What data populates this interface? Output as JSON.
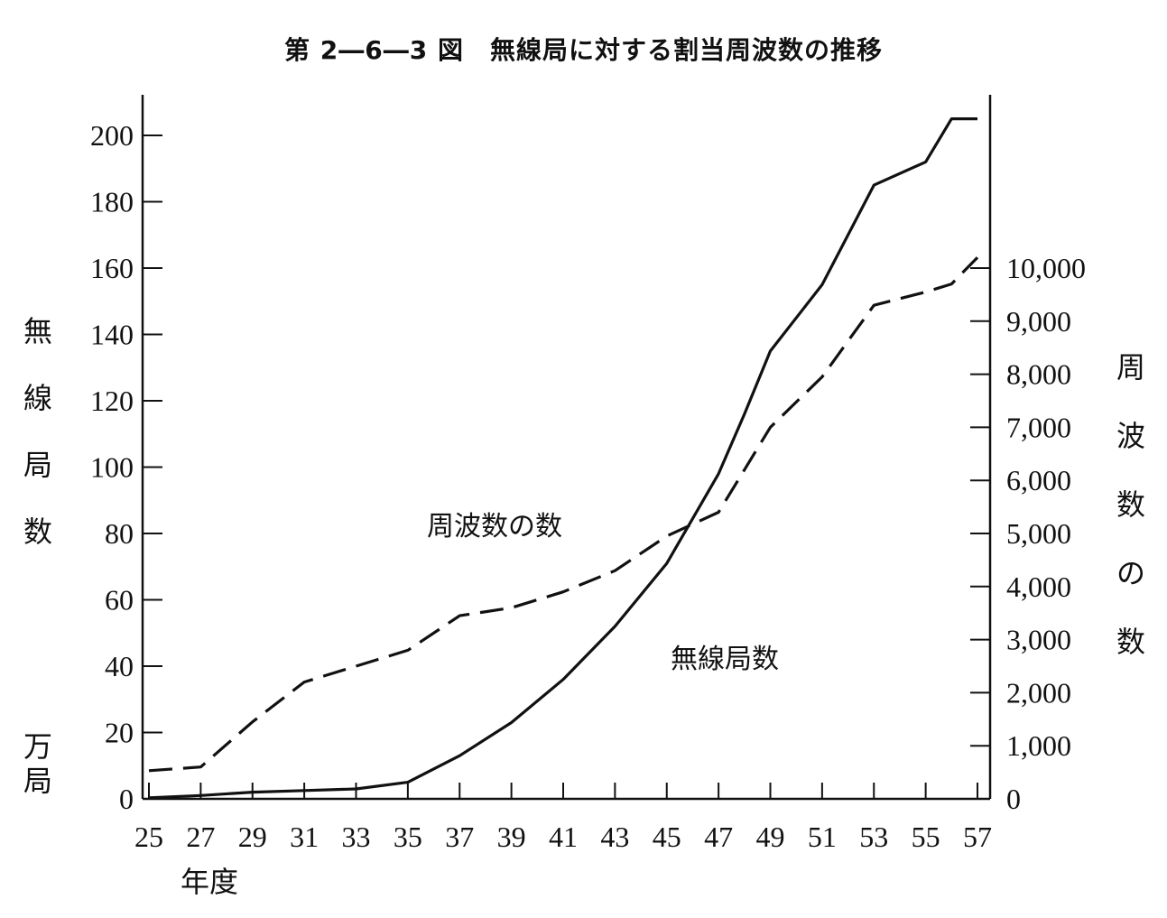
{
  "chart_data": {
    "type": "line",
    "title": "第 2―6―3 図　無線局に対する割当周波数の推移",
    "xlabel": "年度",
    "ylabel_left": [
      "無",
      "線",
      "局",
      "数"
    ],
    "ylabel_left_unit": [
      "万",
      "局"
    ],
    "ylabel_right": [
      "周",
      "波",
      "数",
      "の",
      "数"
    ],
    "x_ticks": [
      "25",
      "27",
      "29",
      "31",
      "33",
      "35",
      "37",
      "39",
      "41",
      "43",
      "45",
      "47",
      "49",
      "51",
      "53",
      "55",
      "57"
    ],
    "xlim": [
      25,
      57
    ],
    "y_left_ticks": [
      "0",
      "20",
      "40",
      "60",
      "80",
      "100",
      "120",
      "140",
      "160",
      "180",
      "200"
    ],
    "ylim_left": [
      0,
      210
    ],
    "y_right_ticks": [
      "0",
      "1,000",
      "2,000",
      "3,000",
      "4,000",
      "5,000",
      "6,000",
      "7,000",
      "8,000",
      "9,000",
      "10,000"
    ],
    "ylim_right": [
      0,
      13200
    ],
    "grid": false,
    "series": [
      {
        "name": "無線局数",
        "axis": "left",
        "style": "solid",
        "x": [
          25,
          27,
          29,
          31,
          33,
          35,
          37,
          39,
          41,
          43,
          45,
          47,
          48,
          49,
          51,
          53,
          55,
          56,
          57
        ],
        "values": [
          0.3,
          1,
          2,
          2.5,
          3,
          5,
          13,
          23,
          36,
          52,
          71,
          98,
          116,
          135,
          155,
          185,
          192,
          205,
          205
        ]
      },
      {
        "name": "周波数の数",
        "axis": "right",
        "style": "dashed",
        "x": [
          25,
          27,
          29,
          31,
          33,
          35,
          37,
          39,
          41,
          43,
          45,
          47,
          49,
          51,
          53,
          55,
          56,
          57
        ],
        "values": [
          530,
          600,
          1450,
          2200,
          2500,
          2800,
          3450,
          3600,
          3900,
          4300,
          4950,
          5400,
          7000,
          7950,
          9300,
          9550,
          9700,
          10200
        ]
      }
    ]
  }
}
